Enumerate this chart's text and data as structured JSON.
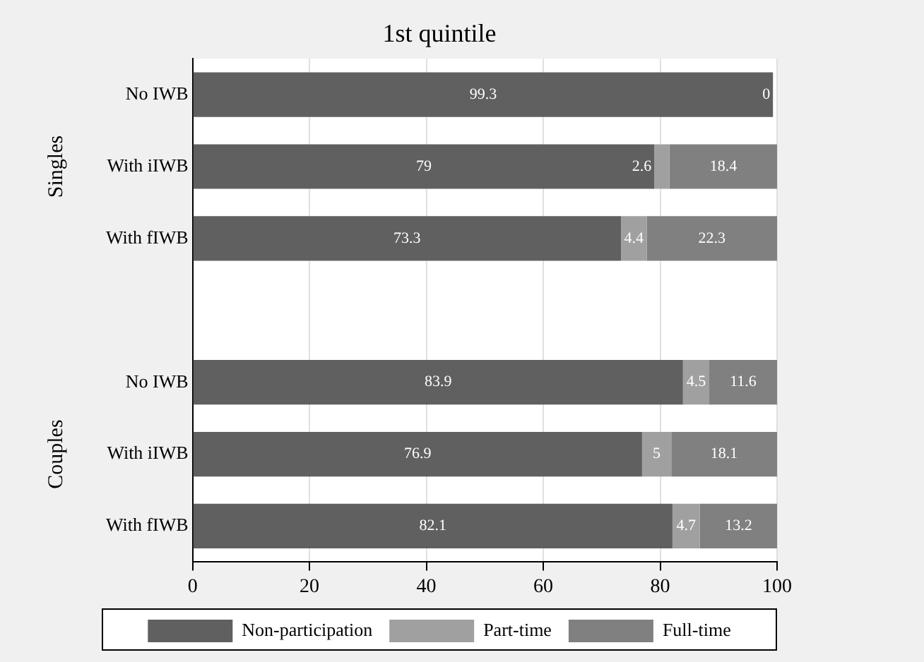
{
  "chart_data": {
    "type": "bar",
    "orientation": "horizontal",
    "stacked": true,
    "title": "1st quintile",
    "categories": [
      "No IWB",
      "With iIWB",
      "With fIWB",
      null,
      "No IWB",
      "With iIWB",
      "With fIWB"
    ],
    "series": [
      {
        "name": "Non-participation",
        "color": "#606060",
        "values": [
          99.3,
          79,
          73.3,
          null,
          83.9,
          76.9,
          82.1
        ]
      },
      {
        "name": "Part-time",
        "color": "#a0a0a0",
        "values": [
          0,
          2.6,
          4.4,
          null,
          4.5,
          5,
          4.7
        ]
      },
      {
        "name": "Full-time",
        "color": "#808080",
        "values": [
          null,
          18.4,
          22.3,
          null,
          11.6,
          18.1,
          13.2
        ]
      }
    ],
    "xlim": [
      0,
      100
    ],
    "xticks": [
      0,
      20,
      40,
      60,
      80,
      100
    ],
    "grid": "x",
    "legend": "bottom",
    "data_labels": true,
    "annotations": [
      "Singles",
      "Couples"
    ]
  }
}
